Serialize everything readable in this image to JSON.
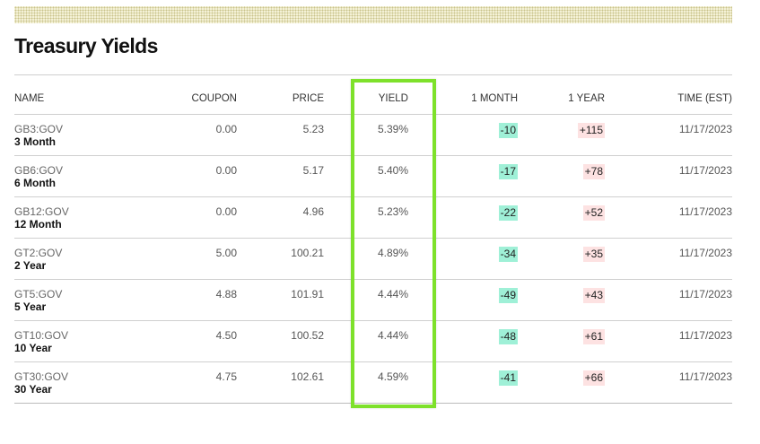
{
  "title": "Treasury Yields",
  "columns": {
    "name": "NAME",
    "coupon": "COUPON",
    "price": "PRICE",
    "yield": "YIELD",
    "month": "1 MONTH",
    "year": "1 YEAR",
    "time": "TIME (EST)"
  },
  "rows": [
    {
      "ticker": "GB3:GOV",
      "tenor": "3 Month",
      "coupon": "0.00",
      "price": "5.23",
      "yield": "5.39%",
      "month": "-10",
      "year": "+115",
      "time": "11/17/2023"
    },
    {
      "ticker": "GB6:GOV",
      "tenor": "6 Month",
      "coupon": "0.00",
      "price": "5.17",
      "yield": "5.40%",
      "month": "-17",
      "year": "+78",
      "time": "11/17/2023"
    },
    {
      "ticker": "GB12:GOV",
      "tenor": "12 Month",
      "coupon": "0.00",
      "price": "4.96",
      "yield": "5.23%",
      "month": "-22",
      "year": "+52",
      "time": "11/17/2023"
    },
    {
      "ticker": "GT2:GOV",
      "tenor": "2 Year",
      "coupon": "5.00",
      "price": "100.21",
      "yield": "4.89%",
      "month": "-34",
      "year": "+35",
      "time": "11/17/2023"
    },
    {
      "ticker": "GT5:GOV",
      "tenor": "5 Year",
      "coupon": "4.88",
      "price": "101.91",
      "yield": "4.44%",
      "month": "-49",
      "year": "+43",
      "time": "11/17/2023"
    },
    {
      "ticker": "GT10:GOV",
      "tenor": "10 Year",
      "coupon": "4.50",
      "price": "100.52",
      "yield": "4.44%",
      "month": "-48",
      "year": "+61",
      "time": "11/17/2023"
    },
    {
      "ticker": "GT30:GOV",
      "tenor": "30 Year",
      "coupon": "4.75",
      "price": "102.61",
      "yield": "4.59%",
      "month": "-41",
      "year": "+66",
      "time": "11/17/2023"
    }
  ],
  "colors": {
    "highlight": "#7ee12b",
    "negative_change_bg": "#9ff0d7",
    "positive_change_bg": "#fde2e2"
  }
}
